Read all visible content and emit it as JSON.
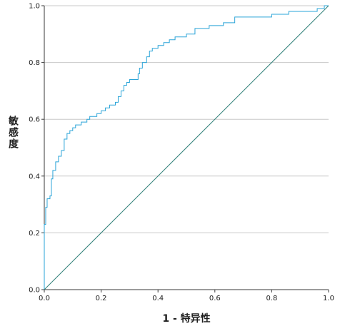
{
  "chart_data": {
    "type": "line",
    "title": "",
    "xlabel": "1 - 特异性",
    "ylabel": "敏感度",
    "xlim": [
      0,
      1
    ],
    "ylim": [
      0,
      1
    ],
    "x_ticks": [
      "0.0",
      "0.2",
      "0.4",
      "0.6",
      "0.8",
      "1.0"
    ],
    "y_ticks": [
      "0.0",
      "0.2",
      "0.4",
      "0.6",
      "0.8",
      "1.0"
    ],
    "grid": "horizontal",
    "legend": "none",
    "colors": {
      "roc": "#2aa4d8",
      "reference": "#2f7f78",
      "grid": "#c8c8c8",
      "axis": "#3a3a3a"
    },
    "series": [
      {
        "x": [
          0,
          0,
          0.005,
          0.005,
          0.01,
          0.01,
          0.02,
          0.02,
          0.025,
          0.025,
          0.03,
          0.03,
          0.04,
          0.04,
          0.05,
          0.05,
          0.06,
          0.06,
          0.07,
          0.07,
          0.08,
          0.08,
          0.09,
          0.09,
          0.1,
          0.1,
          0.11,
          0.11,
          0.13,
          0.13,
          0.15,
          0.15,
          0.16,
          0.16,
          0.185,
          0.185,
          0.2,
          0.2,
          0.215,
          0.215,
          0.23,
          0.23,
          0.25,
          0.25,
          0.26,
          0.26,
          0.27,
          0.27,
          0.28,
          0.28,
          0.29,
          0.29,
          0.3,
          0.3,
          0.33,
          0.33,
          0.335,
          0.335,
          0.345,
          0.345,
          0.36,
          0.36,
          0.37,
          0.37,
          0.38,
          0.38,
          0.4,
          0.4,
          0.42,
          0.42,
          0.44,
          0.44,
          0.46,
          0.46,
          0.5,
          0.5,
          0.53,
          0.53,
          0.58,
          0.58,
          0.63,
          0.63,
          0.67,
          0.67,
          0.8,
          0.8,
          0.86,
          0.86,
          0.96,
          0.96,
          0.985,
          0.985,
          1.0
        ],
        "y": [
          0,
          0.23,
          0.23,
          0.29,
          0.29,
          0.32,
          0.32,
          0.33,
          0.33,
          0.39,
          0.39,
          0.42,
          0.42,
          0.45,
          0.45,
          0.47,
          0.47,
          0.49,
          0.49,
          0.53,
          0.53,
          0.55,
          0.55,
          0.56,
          0.56,
          0.57,
          0.57,
          0.58,
          0.58,
          0.59,
          0.59,
          0.6,
          0.6,
          0.61,
          0.61,
          0.62,
          0.62,
          0.63,
          0.63,
          0.64,
          0.64,
          0.65,
          0.65,
          0.66,
          0.66,
          0.68,
          0.68,
          0.7,
          0.7,
          0.72,
          0.72,
          0.73,
          0.73,
          0.74,
          0.74,
          0.76,
          0.76,
          0.78,
          0.78,
          0.8,
          0.8,
          0.82,
          0.82,
          0.84,
          0.84,
          0.85,
          0.85,
          0.86,
          0.86,
          0.87,
          0.87,
          0.88,
          0.88,
          0.89,
          0.89,
          0.9,
          0.9,
          0.92,
          0.92,
          0.93,
          0.93,
          0.94,
          0.94,
          0.96,
          0.96,
          0.97,
          0.97,
          0.98,
          0.98,
          0.99,
          0.99,
          1.0,
          1.0
        ]
      },
      {
        "x": [
          0,
          1
        ],
        "y": [
          0,
          1
        ]
      }
    ]
  }
}
